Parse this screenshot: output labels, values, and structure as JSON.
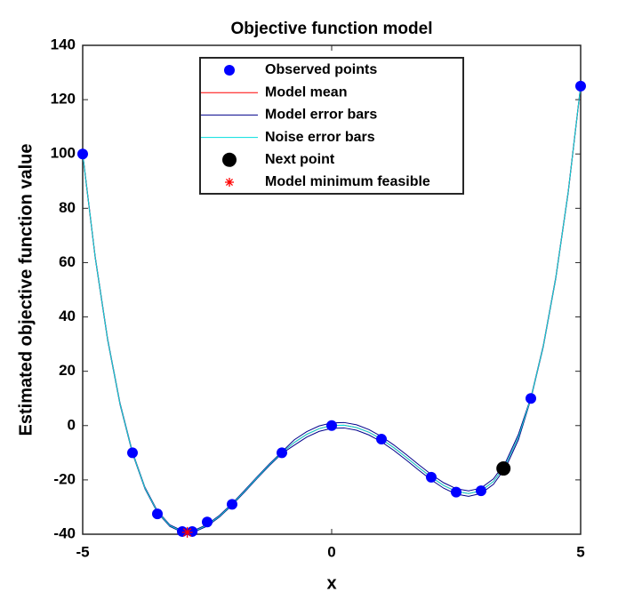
{
  "chart_data": {
    "type": "line",
    "title": "Objective function model",
    "xlabel": "x",
    "ylabel": "Estimated objective function value",
    "xlim": [
      -5,
      5
    ],
    "ylim": [
      -40,
      140
    ],
    "xticks": [
      -5,
      0,
      5
    ],
    "yticks": [
      -40,
      -20,
      0,
      20,
      40,
      60,
      80,
      100,
      120,
      140
    ],
    "grid": false,
    "legend": "top",
    "x": [
      -5,
      -4.75,
      -4.5,
      -4.25,
      -4,
      -3.75,
      -3.5,
      -3.25,
      -3,
      -2.75,
      -2.5,
      -2.25,
      -2,
      -1.75,
      -1.5,
      -1.25,
      -1,
      -0.75,
      -0.5,
      -0.25,
      0,
      0.25,
      0.5,
      0.75,
      1,
      1.25,
      1.5,
      1.75,
      2,
      2.25,
      2.5,
      2.75,
      3,
      3.25,
      3.5,
      3.75,
      4,
      4.25,
      4.5,
      4.75,
      5
    ],
    "series": [
      {
        "name": "Observed points",
        "type": "scatter",
        "color": "#0000ff",
        "x": [
          -5,
          -4,
          -3.5,
          -3,
          -2.8,
          -2.5,
          -2,
          -1,
          0,
          1,
          2,
          2.5,
          3,
          4,
          5
        ],
        "values": [
          100,
          -10,
          -32.5,
          -39,
          -39,
          -35.5,
          -29,
          -10,
          0,
          -5,
          -19,
          -24.5,
          -24,
          10,
          125
        ]
      },
      {
        "name": "Model mean",
        "type": "line",
        "color": "#ff0000",
        "values": [
          100,
          62.16,
          31.78,
          8.0,
          -10,
          -23.0,
          -31.72,
          -36.84,
          -39,
          -38.78,
          -36.72,
          -33.31,
          -29,
          -24.19,
          -19.22,
          -14.41,
          -10,
          -6.22,
          -3.22,
          -1.12,
          0,
          0.13,
          -0.72,
          -2.47,
          -5,
          -8.16,
          -11.72,
          -15.44,
          -19,
          -22.06,
          -24.22,
          -25.03,
          -24,
          -20.59,
          -14.22,
          -4.25,
          10,
          29.25,
          54.28,
          85.91,
          125
        ]
      },
      {
        "name": "Model error bars",
        "type": "band",
        "color": "#00008b",
        "upper": [
          100.3,
          62.46,
          32.08,
          8.3,
          -9.7,
          -22.7,
          -31.42,
          -36.54,
          -38.7,
          -38.48,
          -36.42,
          -33.01,
          -28.7,
          -23.89,
          -18.92,
          -14.11,
          -9.7,
          -5.22,
          -2.22,
          -0.12,
          1,
          1.13,
          0.28,
          -1.47,
          -4,
          -7.16,
          -10.72,
          -14.44,
          -18,
          -21.06,
          -23.22,
          -24.03,
          -23,
          -19.59,
          -13.22,
          -3.25,
          10.3,
          29.55,
          54.58,
          86.21,
          125.3
        ],
        "lower": [
          99.7,
          61.86,
          31.48,
          7.7,
          -10.3,
          -23.3,
          -32.02,
          -37.14,
          -39.3,
          -39.08,
          -37.02,
          -33.61,
          -29.3,
          -24.49,
          -19.52,
          -14.71,
          -10.3,
          -7.22,
          -4.22,
          -2.12,
          -1,
          -0.87,
          -1.72,
          -3.47,
          -6,
          -9.16,
          -12.72,
          -16.44,
          -20,
          -23.06,
          -25.22,
          -26.03,
          -25,
          -21.59,
          -15.22,
          -5.25,
          9.7,
          28.95,
          53.98,
          85.61,
          124.7
        ]
      },
      {
        "name": "Noise error bars",
        "type": "line",
        "color": "#00dede",
        "values": [
          100,
          62.16,
          31.78,
          8.0,
          -10,
          -23.0,
          -31.72,
          -36.84,
          -39,
          -38.78,
          -36.72,
          -33.31,
          -29,
          -24.19,
          -19.22,
          -14.41,
          -10,
          -6.22,
          -3.22,
          -1.12,
          0,
          0.13,
          -0.72,
          -2.47,
          -5,
          -8.16,
          -11.72,
          -15.44,
          -19,
          -22.06,
          -24.22,
          -25.03,
          -24,
          -20.59,
          -14.22,
          -4.25,
          10,
          29.25,
          54.28,
          85.91,
          125
        ]
      },
      {
        "name": "Next point",
        "type": "bigdot",
        "color": "#000000",
        "x": [
          3.45
        ],
        "values": [
          -15.8
        ]
      },
      {
        "name": "Model minimum feasible",
        "type": "star",
        "color": "#ff0000",
        "x": [
          -2.9
        ],
        "values": [
          -39.3
        ]
      }
    ]
  }
}
